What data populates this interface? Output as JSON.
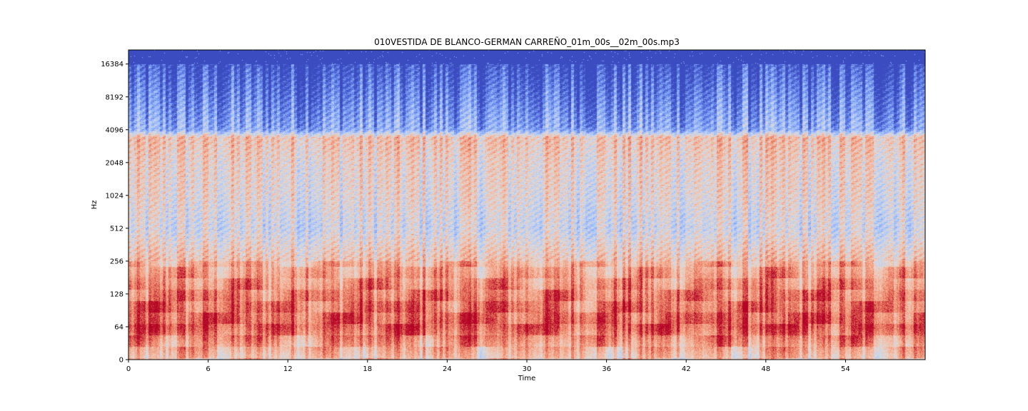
{
  "chart_data": {
    "type": "heatmap",
    "subtype": "log-frequency spectrogram",
    "title": "010VESTIDA DE BLANCO-GERMAN CARREÑO_01m_00s__02m_00s.mp3",
    "xlabel": "Time",
    "ylabel": "Hz",
    "xlim": [
      0,
      60
    ],
    "ylim": [
      0,
      22050
    ],
    "y_scale": "symlog",
    "y_nyquist": 22050,
    "x_ticks": [
      0,
      6,
      12,
      18,
      24,
      30,
      36,
      42,
      48,
      54
    ],
    "x_tick_labels": [
      "0",
      "6",
      "12",
      "18",
      "24",
      "30",
      "36",
      "42",
      "48",
      "54"
    ],
    "y_ticks": [
      0,
      64,
      128,
      256,
      512,
      1024,
      2048,
      4096,
      8192,
      16384
    ],
    "y_tick_labels": [
      "0",
      "64",
      "128",
      "256",
      "512",
      "1024",
      "2048",
      "4096",
      "8192",
      "16384"
    ],
    "colormap": "coolwarm",
    "colormap_colors": [
      "#3b4cc0",
      "#6f92f3",
      "#aac7fd",
      "#dddcdc",
      "#f7b89c",
      "#e7745b",
      "#b40426"
    ],
    "energy_profile": [
      {
        "hz": 16000,
        "level": 0.0
      },
      {
        "hz": 4096,
        "level": 0.25
      },
      {
        "hz": 3500,
        "level": 0.62
      },
      {
        "hz": 2048,
        "level": 0.55
      },
      {
        "hz": 1024,
        "level": 0.52
      },
      {
        "hz": 512,
        "level": 0.45
      },
      {
        "hz": 256,
        "level": 0.62
      },
      {
        "hz": 128,
        "level": 0.75
      },
      {
        "hz": 64,
        "level": 0.82
      },
      {
        "hz": 0,
        "level": 0.55
      }
    ],
    "grid": false,
    "legend": "none"
  }
}
